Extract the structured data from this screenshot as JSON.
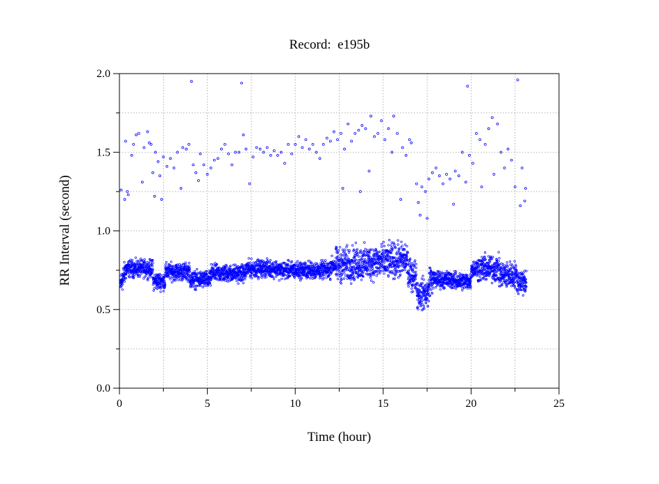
{
  "chart_data": {
    "type": "scatter",
    "title": "Record:  e195b",
    "xlabel": "Time (hour)",
    "ylabel": "RR Interval (second)",
    "xlim": [
      0,
      25
    ],
    "ylim": [
      0,
      2.0
    ],
    "xticks": [
      0,
      5,
      10,
      15,
      20,
      25
    ],
    "xtick_labels": [
      "0",
      "5",
      "10",
      "15",
      "20",
      "25"
    ],
    "yticks": [
      0.0,
      0.5,
      1.0,
      1.5,
      2.0
    ],
    "ytick_labels": [
      "0.0",
      "0.5",
      "1.0",
      "1.5",
      "2.0"
    ],
    "grid": true,
    "marker_color": "#0000ff",
    "series": [
      {
        "points": [
          [
            0.1,
            1.26
          ],
          [
            0.3,
            1.2
          ],
          [
            0.35,
            1.57
          ],
          [
            0.45,
            1.25
          ],
          [
            0.5,
            1.23
          ],
          [
            0.7,
            1.48
          ],
          [
            0.8,
            1.55
          ],
          [
            0.95,
            1.61
          ],
          [
            1.1,
            1.62
          ],
          [
            1.3,
            1.31
          ],
          [
            1.4,
            1.53
          ],
          [
            1.6,
            1.63
          ],
          [
            1.7,
            1.56
          ],
          [
            1.8,
            1.55
          ],
          [
            1.9,
            1.37
          ],
          [
            2.0,
            1.22
          ],
          [
            2.05,
            1.5
          ],
          [
            2.2,
            1.44
          ],
          [
            2.3,
            1.35
          ],
          [
            2.4,
            1.2
          ],
          [
            2.5,
            1.47
          ],
          [
            2.7,
            1.41
          ],
          [
            2.9,
            1.46
          ],
          [
            3.1,
            1.4
          ],
          [
            3.3,
            1.5
          ],
          [
            3.5,
            1.27
          ],
          [
            3.6,
            1.53
          ],
          [
            3.8,
            1.52
          ],
          [
            3.95,
            1.55
          ],
          [
            4.1,
            1.95
          ],
          [
            4.2,
            1.42
          ],
          [
            4.35,
            1.37
          ],
          [
            4.5,
            1.32
          ],
          [
            4.6,
            1.49
          ],
          [
            4.8,
            1.42
          ],
          [
            5.0,
            1.36
          ],
          [
            5.2,
            1.4
          ],
          [
            5.4,
            1.45
          ],
          [
            5.6,
            1.46
          ],
          [
            5.8,
            1.52
          ],
          [
            6.0,
            1.55
          ],
          [
            6.2,
            1.49
          ],
          [
            6.4,
            1.42
          ],
          [
            6.6,
            1.5
          ],
          [
            6.8,
            1.5
          ],
          [
            6.95,
            1.94
          ],
          [
            7.05,
            1.61
          ],
          [
            7.2,
            1.52
          ],
          [
            7.4,
            1.3
          ],
          [
            7.6,
            1.47
          ],
          [
            7.8,
            1.53
          ],
          [
            8.0,
            1.52
          ],
          [
            8.2,
            1.5
          ],
          [
            8.4,
            1.53
          ],
          [
            8.6,
            1.48
          ],
          [
            8.8,
            1.51
          ],
          [
            9.0,
            1.48
          ],
          [
            9.2,
            1.5
          ],
          [
            9.4,
            1.43
          ],
          [
            9.6,
            1.55
          ],
          [
            9.8,
            1.49
          ],
          [
            10.0,
            1.55
          ],
          [
            10.2,
            1.6
          ],
          [
            10.4,
            1.53
          ],
          [
            10.6,
            1.58
          ],
          [
            10.8,
            1.52
          ],
          [
            11.0,
            1.55
          ],
          [
            11.2,
            1.5
          ],
          [
            11.4,
            1.46
          ],
          [
            11.6,
            1.55
          ],
          [
            11.8,
            1.59
          ],
          [
            12.0,
            1.57
          ],
          [
            12.2,
            1.63
          ],
          [
            12.4,
            1.58
          ],
          [
            12.6,
            1.62
          ],
          [
            12.7,
            1.27
          ],
          [
            12.8,
            1.52
          ],
          [
            13.0,
            1.68
          ],
          [
            13.2,
            1.57
          ],
          [
            13.4,
            1.62
          ],
          [
            13.6,
            1.64
          ],
          [
            13.7,
            1.25
          ],
          [
            13.8,
            1.67
          ],
          [
            14.0,
            1.65
          ],
          [
            14.2,
            1.38
          ],
          [
            14.3,
            1.73
          ],
          [
            14.5,
            1.6
          ],
          [
            14.7,
            1.62
          ],
          [
            14.9,
            1.7
          ],
          [
            15.1,
            1.58
          ],
          [
            15.3,
            1.65
          ],
          [
            15.5,
            1.5
          ],
          [
            15.6,
            1.73
          ],
          [
            15.8,
            1.62
          ],
          [
            16.0,
            1.2
          ],
          [
            16.1,
            1.53
          ],
          [
            16.3,
            1.48
          ],
          [
            16.5,
            1.58
          ],
          [
            16.6,
            1.56
          ],
          [
            16.9,
            1.3
          ],
          [
            17.0,
            1.18
          ],
          [
            17.1,
            1.1
          ],
          [
            17.2,
            1.28
          ],
          [
            17.4,
            1.25
          ],
          [
            17.5,
            1.08
          ],
          [
            17.6,
            1.33
          ],
          [
            17.8,
            1.37
          ],
          [
            18.0,
            1.4
          ],
          [
            18.2,
            1.35
          ],
          [
            18.4,
            1.3
          ],
          [
            18.6,
            1.36
          ],
          [
            18.8,
            1.33
          ],
          [
            19.0,
            1.17
          ],
          [
            19.1,
            1.38
          ],
          [
            19.3,
            1.35
          ],
          [
            19.5,
            1.5
          ],
          [
            19.7,
            1.31
          ],
          [
            19.8,
            1.92
          ],
          [
            19.9,
            1.48
          ],
          [
            20.1,
            1.43
          ],
          [
            20.3,
            1.62
          ],
          [
            20.5,
            1.58
          ],
          [
            20.6,
            1.28
          ],
          [
            20.8,
            1.55
          ],
          [
            21.0,
            1.65
          ],
          [
            21.2,
            1.72
          ],
          [
            21.3,
            1.36
          ],
          [
            21.5,
            1.68
          ],
          [
            21.7,
            1.5
          ],
          [
            21.9,
            1.4
          ],
          [
            22.1,
            1.52
          ],
          [
            22.3,
            1.45
          ],
          [
            22.5,
            1.28
          ],
          [
            22.65,
            1.96
          ],
          [
            22.8,
            1.16
          ],
          [
            22.9,
            1.4
          ],
          [
            23.05,
            1.19
          ],
          [
            23.1,
            1.27
          ]
        ]
      }
    ]
  }
}
